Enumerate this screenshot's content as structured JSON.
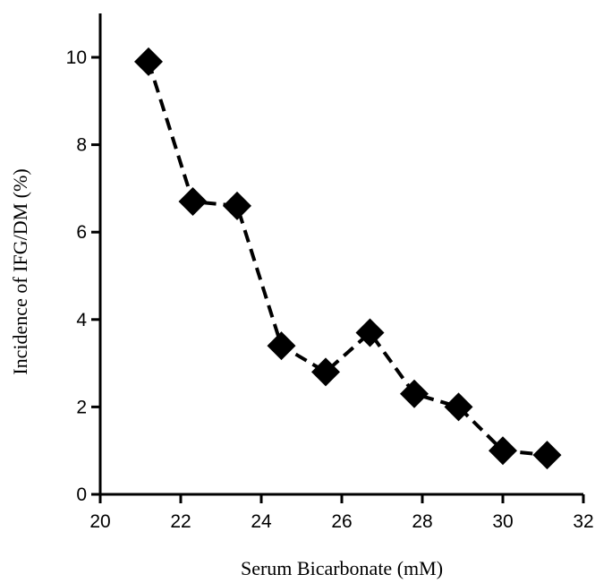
{
  "chart_data": {
    "type": "line",
    "title": "",
    "xlabel": "Serum Bicarbonate (mM)",
    "ylabel": "Incidence of IFG/DM (%)",
    "xlim": [
      20,
      32
    ],
    "ylim": [
      0,
      11
    ],
    "x_ticks": [
      20,
      22,
      24,
      26,
      28,
      30,
      32
    ],
    "y_ticks": [
      0,
      2,
      4,
      6,
      8,
      10
    ],
    "grid": false,
    "legend": "none",
    "series": [
      {
        "marker": "diamond",
        "line_style": "dashed",
        "color": "#000000",
        "x": [
          21.2,
          22.3,
          23.4,
          24.5,
          25.6,
          26.7,
          27.8,
          28.9,
          30.0,
          31.1
        ],
        "y": [
          9.9,
          6.7,
          6.6,
          3.4,
          2.8,
          3.7,
          2.3,
          2.0,
          1.0,
          0.9
        ]
      }
    ]
  }
}
